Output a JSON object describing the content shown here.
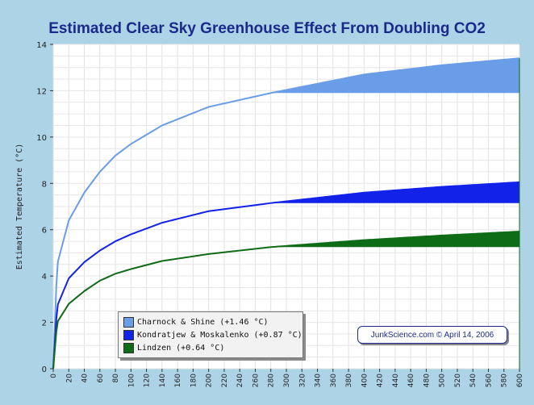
{
  "chart_data": {
    "type": "area",
    "title": "Estimated Clear Sky Greenhouse Effect From Doubling CO2",
    "xlabel": "",
    "ylabel": "Estimated Temperature (°C)",
    "xlim": [
      0,
      600
    ],
    "ylim": [
      0,
      14
    ],
    "x_ticks": [
      0,
      20,
      40,
      60,
      80,
      100,
      120,
      140,
      160,
      180,
      200,
      220,
      240,
      260,
      280,
      300,
      320,
      340,
      360,
      380,
      400,
      420,
      440,
      460,
      480,
      500,
      520,
      540,
      560,
      580,
      600
    ],
    "y_ticks": [
      0,
      2,
      4,
      6,
      8,
      10,
      12,
      14
    ],
    "band_start_x": 280,
    "series": [
      {
        "name": "Charnock & Shine",
        "legend": "Charnock & Shine (+1.46 °C)",
        "color": "#6a9de8",
        "anchors": [
          [
            0,
            0
          ],
          [
            5,
            4.5
          ],
          [
            20,
            6.4
          ],
          [
            40,
            7.6
          ],
          [
            60,
            8.5
          ],
          [
            80,
            9.2
          ],
          [
            100,
            9.7
          ],
          [
            140,
            10.5
          ],
          [
            200,
            11.3
          ],
          [
            280,
            11.9
          ],
          [
            400,
            12.7
          ],
          [
            500,
            13.1
          ],
          [
            600,
            13.4
          ]
        ]
      },
      {
        "name": "Kondratjew & Moskalenko",
        "legend": "Kondratjew & Moskalenko (+0.87 °C)",
        "color": "#1222e8",
        "anchors": [
          [
            0,
            0
          ],
          [
            5,
            2.7
          ],
          [
            20,
            3.9
          ],
          [
            40,
            4.6
          ],
          [
            60,
            5.1
          ],
          [
            80,
            5.5
          ],
          [
            100,
            5.8
          ],
          [
            140,
            6.3
          ],
          [
            200,
            6.8
          ],
          [
            280,
            7.15
          ],
          [
            400,
            7.6
          ],
          [
            500,
            7.85
          ],
          [
            600,
            8.05
          ]
        ]
      },
      {
        "name": "Lindzen",
        "legend": "Lindzen (+0.64 °C)",
        "color": "#0e6b16",
        "anchors": [
          [
            0,
            0
          ],
          [
            5,
            2.0
          ],
          [
            20,
            2.8
          ],
          [
            40,
            3.35
          ],
          [
            60,
            3.8
          ],
          [
            80,
            4.1
          ],
          [
            100,
            4.3
          ],
          [
            140,
            4.65
          ],
          [
            200,
            4.95
          ],
          [
            280,
            5.25
          ],
          [
            400,
            5.55
          ],
          [
            500,
            5.75
          ],
          [
            600,
            5.92
          ]
        ]
      }
    ]
  },
  "credit": "JunkScience.com © April 14, 2006"
}
